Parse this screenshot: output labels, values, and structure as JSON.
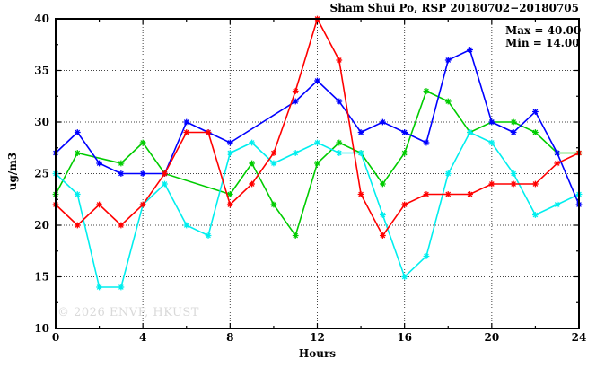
{
  "watermark": "© 2026 ENVF, HKUST",
  "legend": {
    "max_label": "Max = 40.00",
    "min_label": "Min = 14.00"
  },
  "chart_data": {
    "type": "line",
    "title": "Sham Shui Po, RSP 20180702−20180705",
    "xlabel": "Hours",
    "ylabel": "ug/m3",
    "xlim": [
      0,
      24
    ],
    "ylim": [
      10,
      40
    ],
    "x_major_ticks": [
      0,
      4,
      8,
      12,
      16,
      20,
      24
    ],
    "x_minor_step": 2,
    "y_major_ticks": [
      10,
      15,
      20,
      25,
      30,
      35,
      40
    ],
    "y_minor_step": 2.5,
    "grid": true,
    "legend_position": "top-right-inside",
    "annotations": [
      "Max = 40.00",
      "Min = 14.00"
    ],
    "x_hours": [
      0,
      1,
      2,
      3,
      4,
      5,
      6,
      7,
      8,
      9,
      10,
      11,
      12,
      13,
      14,
      15,
      16,
      17,
      18,
      19,
      20,
      21,
      22,
      23,
      24
    ],
    "series": [
      {
        "name": "green",
        "color": "#00cc00",
        "values": [
          23,
          27,
          null,
          26,
          28,
          25,
          null,
          null,
          23,
          26,
          22,
          19,
          26,
          28,
          27,
          24,
          27,
          33,
          32,
          29,
          30,
          30,
          29,
          27,
          27
        ]
      },
      {
        "name": "cyan",
        "color": "#00eeee",
        "values": [
          25,
          23,
          14,
          14,
          22,
          24,
          20,
          19,
          27,
          28,
          26,
          27,
          28,
          27,
          27,
          21,
          15,
          17,
          25,
          29,
          28,
          25,
          21,
          22,
          23
        ]
      },
      {
        "name": "blue",
        "color": "#0000ff",
        "values": [
          27,
          29,
          26,
          25,
          25,
          25,
          30,
          29,
          28,
          null,
          null,
          32,
          34,
          32,
          29,
          30,
          29,
          28,
          36,
          37,
          30,
          29,
          31,
          27,
          22
        ]
      },
      {
        "name": "red",
        "color": "#ff0000",
        "values": [
          22,
          20,
          22,
          20,
          22,
          25,
          29,
          29,
          22,
          24,
          27,
          33,
          40,
          36,
          23,
          19,
          22,
          23,
          23,
          23,
          24,
          24,
          24,
          26,
          27
        ]
      }
    ],
    "max_value": 40.0,
    "min_value": 14.0
  }
}
